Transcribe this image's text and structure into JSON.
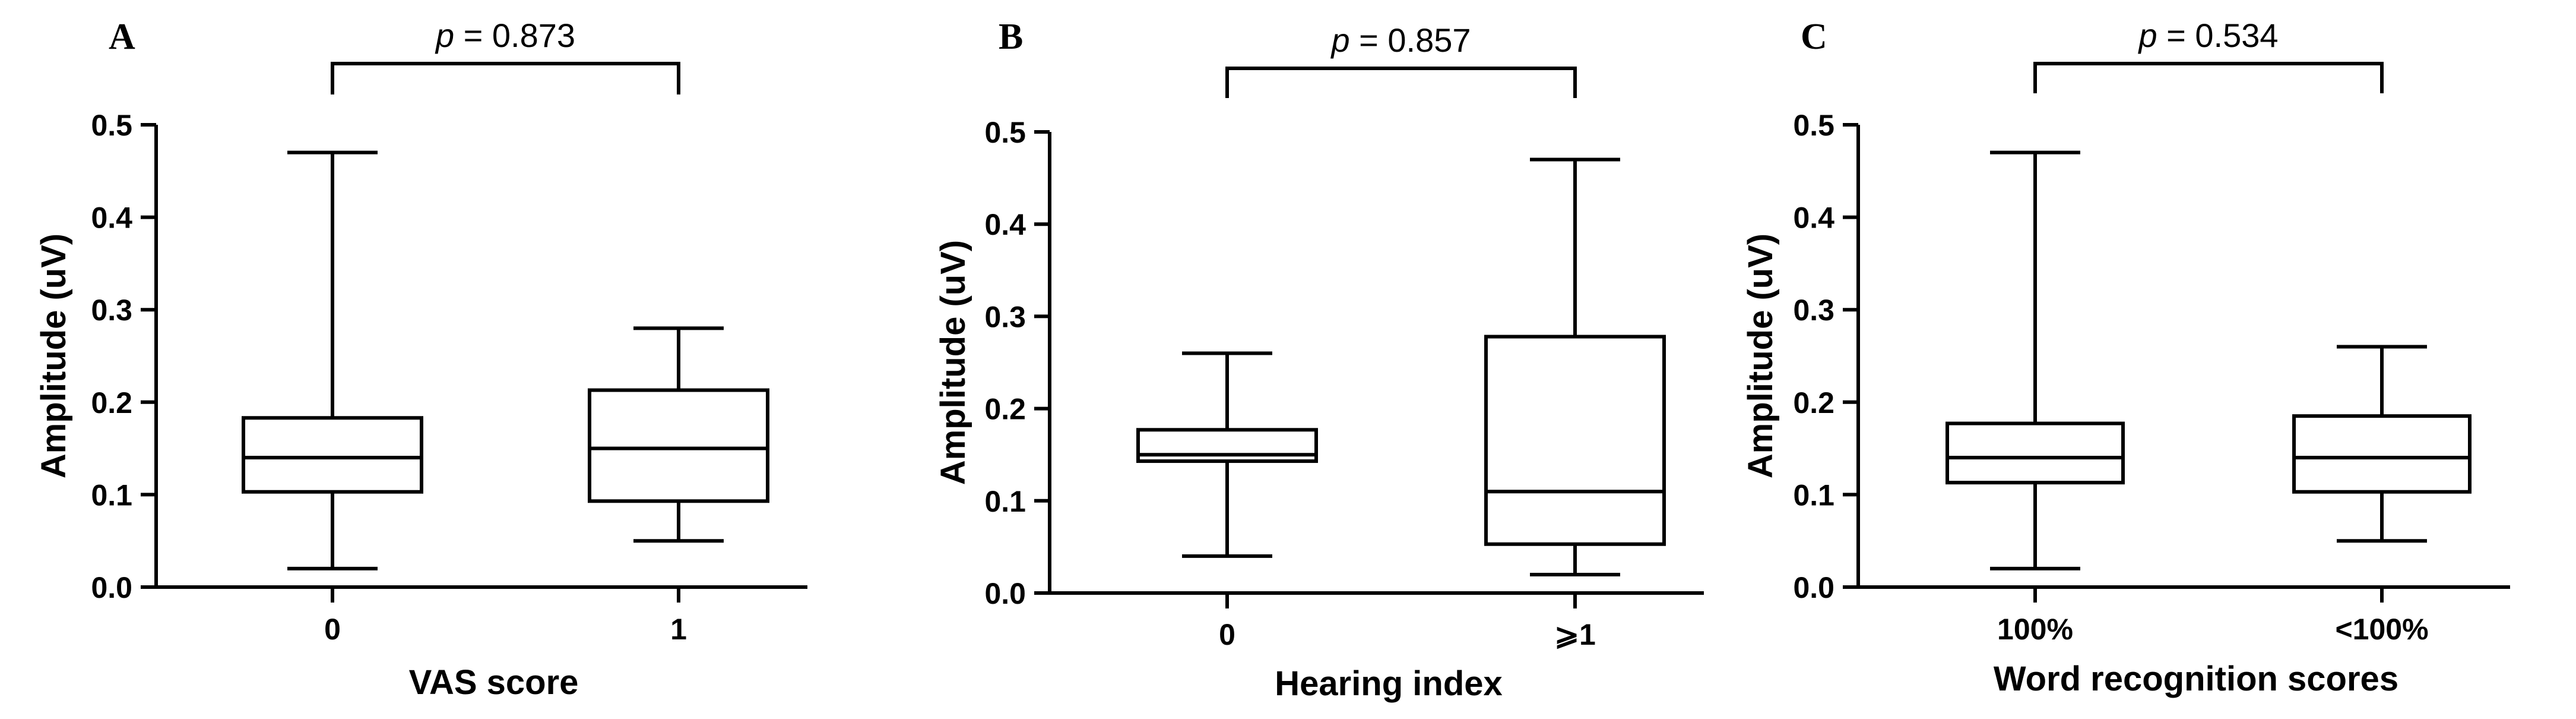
{
  "chart_data": [
    {
      "type": "box",
      "panel": "A",
      "xlabel": "VAS score",
      "ylabel": "Amplitude (uV)",
      "ylim": [
        0,
        0.5
      ],
      "yticks": [
        "0.0",
        "0.1",
        "0.2",
        "0.3",
        "0.4",
        "0.5"
      ],
      "categories": [
        "0",
        "1"
      ],
      "boxes": [
        {
          "min": 0.02,
          "q1": 0.103,
          "median": 0.14,
          "q3": 0.183,
          "max": 0.47
        },
        {
          "min": 0.05,
          "q1": 0.093,
          "median": 0.15,
          "q3": 0.213,
          "max": 0.28
        }
      ],
      "p_prefix": "p",
      "p_text": " = 0.873"
    },
    {
      "type": "box",
      "panel": "B",
      "xlabel": "Hearing index",
      "ylabel": "Amplitude (uV)",
      "ylim": [
        0,
        0.5
      ],
      "yticks": [
        "0.0",
        "0.1",
        "0.2",
        "0.3",
        "0.4",
        "0.5"
      ],
      "categories": [
        "0",
        "⩾1"
      ],
      "boxes": [
        {
          "min": 0.04,
          "q1": 0.143,
          "median": 0.15,
          "q3": 0.177,
          "max": 0.26
        },
        {
          "min": 0.02,
          "q1": 0.053,
          "median": 0.11,
          "q3": 0.278,
          "max": 0.47
        }
      ],
      "p_prefix": "p",
      "p_text": " = 0.857"
    },
    {
      "type": "box",
      "panel": "C",
      "xlabel": "Word recognition scores",
      "ylabel": "Amplitude (uV)",
      "ylim": [
        0,
        0.5
      ],
      "yticks": [
        "0.0",
        "0.1",
        "0.2",
        "0.3",
        "0.4",
        "0.5"
      ],
      "categories": [
        "100%",
        "<100%"
      ],
      "boxes": [
        {
          "min": 0.02,
          "q1": 0.113,
          "median": 0.14,
          "q3": 0.177,
          "max": 0.47
        },
        {
          "min": 0.05,
          "q1": 0.103,
          "median": 0.14,
          "q3": 0.185,
          "max": 0.26
        }
      ],
      "p_prefix": "p",
      "p_text": " = 0.534"
    }
  ]
}
